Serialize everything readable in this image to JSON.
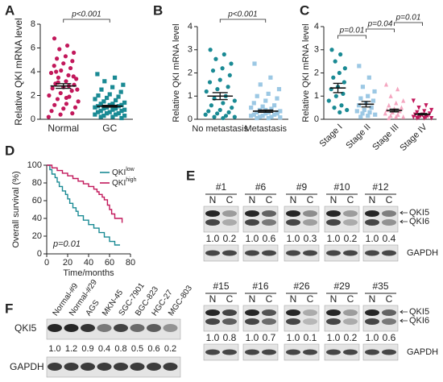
{
  "chart_data": [
    {
      "type": "dot",
      "panel": "A",
      "ylabel": "Relative QKI mRNA level",
      "categories": [
        "Normal",
        "GC"
      ],
      "groups": [
        {
          "color": "#c2185b",
          "marker": "circle",
          "mean": 2.8,
          "sem": 0.2,
          "values": [
            6.8,
            6.2,
            5.9,
            5.6,
            5.3,
            5.1,
            4.9,
            4.7,
            4.5,
            4.3,
            4.1,
            3.9,
            3.7,
            3.5,
            3.4,
            3.2,
            3.0,
            2.9,
            2.7,
            2.6,
            2.4,
            2.2,
            2.0,
            1.9,
            1.7,
            1.5,
            1.3,
            1.2,
            1.0,
            0.9,
            0.7,
            0.5,
            0.4,
            0.2,
            2.8,
            3.1,
            2.5,
            1.8,
            4.0,
            3.6
          ]
        },
        {
          "color": "#1a8a94",
          "marker": "square",
          "mean": 1.1,
          "sem": 0.08,
          "values": [
            3.8,
            3.5,
            3.2,
            2.9,
            2.7,
            2.5,
            2.3,
            2.1,
            2.0,
            1.9,
            1.8,
            1.7,
            1.6,
            1.5,
            1.4,
            1.3,
            1.3,
            1.2,
            1.2,
            1.1,
            1.1,
            1.0,
            1.0,
            0.9,
            0.9,
            0.8,
            0.8,
            0.7,
            0.7,
            0.6,
            0.6,
            0.5,
            0.5,
            0.4,
            0.4,
            0.3,
            0.3,
            0.2,
            0.2,
            0.1
          ]
        }
      ],
      "p_labels": [
        "p<0.001"
      ],
      "ylim": [
        0,
        8
      ],
      "yticks": [
        0,
        2,
        4,
        6,
        8
      ]
    },
    {
      "type": "dot",
      "panel": "B",
      "ylabel": "Relative QKI mRNA level",
      "categories": [
        "No metastasis",
        "Metastasis"
      ],
      "groups": [
        {
          "color": "#1a8a94",
          "marker": "circle",
          "mean": 1.0,
          "sem": 0.15,
          "values": [
            3.0,
            2.8,
            2.6,
            2.4,
            2.2,
            2.1,
            1.9,
            1.7,
            1.6,
            1.4,
            1.3,
            1.2,
            1.0,
            0.9,
            0.8,
            0.7,
            0.6,
            0.5,
            0.4,
            0.35,
            0.3,
            0.25,
            0.2,
            0.15,
            0.1,
            0.1,
            0.05
          ]
        },
        {
          "color": "#9cc8e4",
          "marker": "square",
          "mean": 0.35,
          "sem": 0.05,
          "values": [
            2.4,
            1.8,
            1.5,
            1.3,
            1.1,
            1.0,
            0.9,
            0.8,
            0.7,
            0.6,
            0.55,
            0.5,
            0.45,
            0.4,
            0.35,
            0.3,
            0.3,
            0.25,
            0.25,
            0.2,
            0.2,
            0.15,
            0.15,
            0.1,
            0.1,
            0.08,
            0.05,
            0.05,
            0.3,
            0.4
          ]
        }
      ],
      "p_labels": [
        "p<0.001"
      ],
      "ylim": [
        0,
        4
      ],
      "yticks": [
        0,
        1,
        2,
        3,
        4
      ]
    },
    {
      "type": "dot",
      "panel": "C",
      "ylabel": "Relative QKI mRNA level",
      "categories": [
        "Stage I",
        "Stage II",
        "Stage III",
        "Stage IV"
      ],
      "groups": [
        {
          "color": "#1a8a94",
          "marker": "circle",
          "mean": 1.35,
          "sem": 0.2,
          "values": [
            3.0,
            2.8,
            2.5,
            2.2,
            2.0,
            1.8,
            1.6,
            1.4,
            1.3,
            1.1,
            1.0,
            0.8,
            0.6,
            0.5,
            0.4,
            0.3
          ]
        },
        {
          "color": "#9cc8e4",
          "marker": "square",
          "mean": 0.65,
          "sem": 0.12,
          "values": [
            2.3,
            1.8,
            1.4,
            1.2,
            1.0,
            0.9,
            0.8,
            0.7,
            0.6,
            0.5,
            0.4,
            0.35,
            0.3,
            0.25,
            0.2,
            0.15,
            0.1
          ]
        },
        {
          "color": "#f4a6c0",
          "marker": "triangle",
          "mean": 0.38,
          "sem": 0.06,
          "values": [
            1.5,
            1.3,
            1.0,
            0.8,
            0.7,
            0.6,
            0.5,
            0.45,
            0.4,
            0.35,
            0.3,
            0.25,
            0.2,
            0.15,
            0.1,
            0.1,
            0.05
          ]
        },
        {
          "color": "#c2185b",
          "marker": "triangle-down",
          "mean": 0.22,
          "sem": 0.03,
          "values": [
            0.8,
            0.6,
            0.5,
            0.4,
            0.35,
            0.3,
            0.25,
            0.2,
            0.2,
            0.15,
            0.15,
            0.1,
            0.1,
            0.08,
            0.05,
            0.05,
            0.05
          ]
        }
      ],
      "p_labels": [
        "p=0.01",
        "p=0.04",
        "p=0.01"
      ],
      "ylim": [
        0,
        4
      ],
      "yticks": [
        0,
        1,
        2,
        3,
        4
      ]
    },
    {
      "type": "survival",
      "panel": "D",
      "ylabel": "Overall survival (%)",
      "xlabel": "Time/months",
      "annotation": "p=0.01",
      "series": [
        {
          "name": "QKI",
          "name_sup": "low",
          "color": "#1a8a94",
          "x": [
            0,
            3,
            5,
            8,
            10,
            12,
            15,
            18,
            20,
            22,
            25,
            28,
            30,
            35,
            40,
            45,
            50,
            55,
            60,
            62,
            65,
            70
          ],
          "values": [
            100,
            95,
            90,
            86,
            81,
            76,
            71,
            67,
            62,
            57,
            52,
            48,
            43,
            38,
            33,
            29,
            24,
            19,
            14,
            14,
            10,
            10
          ]
        },
        {
          "name": "QKI",
          "name_sup": "high",
          "color": "#c2185b",
          "x": [
            0,
            5,
            10,
            15,
            20,
            25,
            30,
            35,
            40,
            45,
            48,
            50,
            53,
            55,
            58,
            60,
            62,
            65,
            72
          ],
          "values": [
            100,
            97,
            94,
            91,
            88,
            85,
            82,
            79,
            76,
            73,
            70,
            67,
            64,
            61,
            55,
            50,
            45,
            40,
            35
          ]
        }
      ],
      "xlim": [
        0,
        80
      ],
      "xticks": [
        0,
        20,
        40,
        60,
        80
      ],
      "ylim": [
        0,
        100
      ],
      "yticks": [
        0,
        20,
        40,
        60,
        80,
        100
      ]
    }
  ],
  "western_blots": [
    {
      "panel": "E",
      "lane_labels": [
        "N",
        "C"
      ],
      "band_labels": [
        "QKI5",
        "QKI6"
      ],
      "loading_label": "GAPDH",
      "samples": [
        {
          "name": "#1",
          "ratios": [
            "1.0",
            "0.2"
          ]
        },
        {
          "name": "#6",
          "ratios": [
            "1.0",
            "0.6"
          ]
        },
        {
          "name": "#9",
          "ratios": [
            "1.0",
            "0.3"
          ]
        },
        {
          "name": "#10",
          "ratios": [
            "1.0",
            "0.2"
          ]
        },
        {
          "name": "#12",
          "ratios": [
            "1.0",
            "0.4"
          ]
        },
        {
          "name": "#15",
          "ratios": [
            "1.0",
            "0.8"
          ]
        },
        {
          "name": "#16",
          "ratios": [
            "1.0",
            "0.7"
          ]
        },
        {
          "name": "#26",
          "ratios": [
            "1.0",
            "0.1"
          ]
        },
        {
          "name": "#29",
          "ratios": [
            "1.0",
            "0.2"
          ]
        },
        {
          "name": "#35",
          "ratios": [
            "1.0",
            "0.6"
          ]
        }
      ]
    },
    {
      "panel": "F",
      "band_label": "QKI5",
      "loading_label": "GAPDH",
      "lanes": [
        "Normal-#9",
        "Normal-#29",
        "AGS",
        "MKN-45",
        "SGC-7901",
        "BGC-823",
        "HGC-27",
        "MGC-803"
      ],
      "ratios": [
        "1.0",
        "1.2",
        "0.9",
        "0.4",
        "0.8",
        "0.5",
        "0.6",
        "0.2"
      ]
    }
  ]
}
